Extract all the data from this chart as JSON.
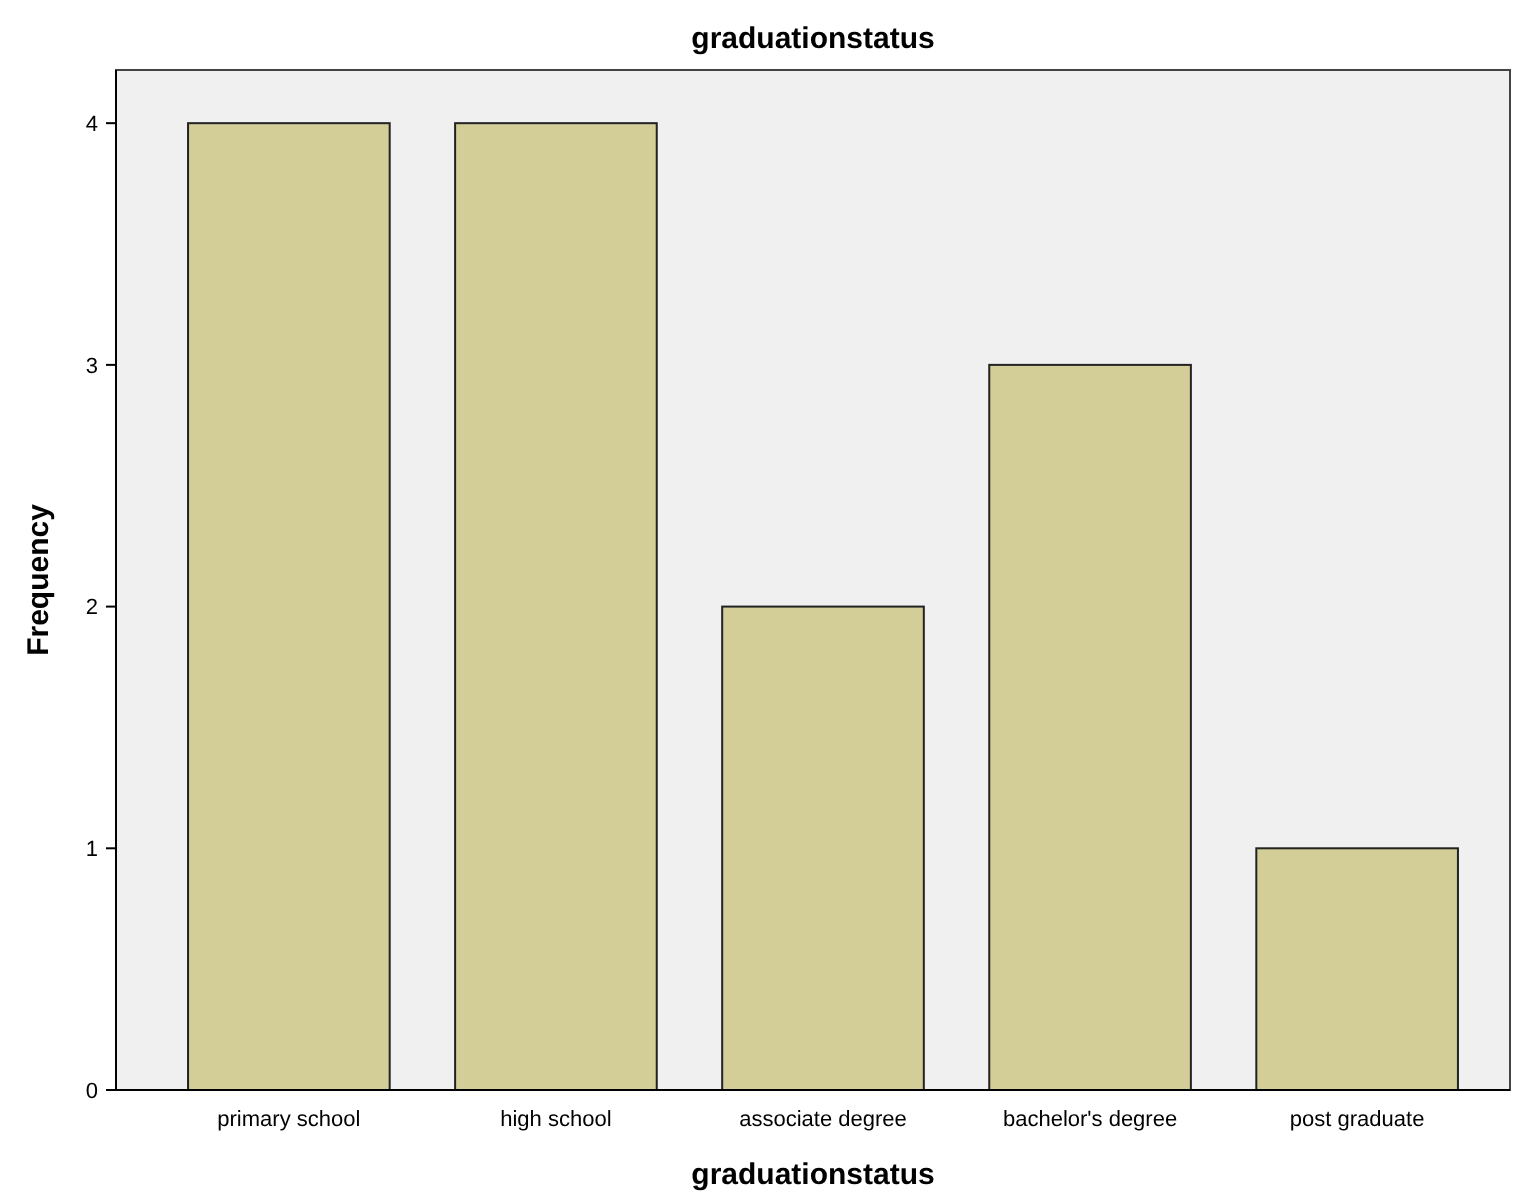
{
  "chart_data": {
    "type": "bar",
    "title": "graduationstatus",
    "xlabel": "graduationstatus",
    "ylabel": "Frequency",
    "categories": [
      "primary school",
      "high school",
      "associate degree",
      "bachelor's degree",
      "post graduate"
    ],
    "values": [
      4,
      4,
      2,
      3,
      1
    ],
    "color": "#d3ce97",
    "ylim": [
      0,
      4.22
    ],
    "yticks": [
      0,
      1,
      2,
      3,
      4
    ],
    "grid": false
  }
}
